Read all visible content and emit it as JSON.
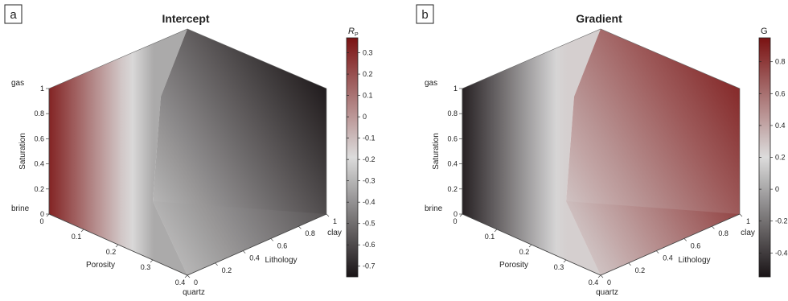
{
  "chart_data": [
    {
      "type": "heatmap",
      "panel_label": "a",
      "title": "Intercept",
      "colorbar_label": "R",
      "colorbar_label_sub": "P",
      "colorbar_range": [
        -0.75,
        0.37
      ],
      "colorbar_ticks": [
        0.3,
        0.2,
        0.1,
        0,
        -0.1,
        -0.2,
        -0.3,
        -0.4,
        -0.5,
        -0.6,
        -0.7
      ],
      "colormap": [
        "#1a1416",
        "#dcdcdc",
        "#7a1212"
      ],
      "axes": {
        "saturation": {
          "label": "Saturation",
          "ticks": [
            0,
            0.2,
            0.4,
            0.6,
            0.8,
            1
          ],
          "end_labels": [
            "brine",
            "gas"
          ]
        },
        "porosity": {
          "label": "Porosity",
          "ticks": [
            0,
            0.1,
            0.2,
            0.3,
            0.4
          ]
        },
        "lithology": {
          "label": "Lithology",
          "ticks": [
            0,
            0.2,
            0.4,
            0.6,
            0.8,
            1
          ],
          "end_labels": [
            "quartz",
            "clay"
          ]
        }
      },
      "faces": {
        "saturation_porosity": "left face: high values (~0.3) at porosity 0, decreasing toward ~-0.3 at porosity 0.4",
        "porosity_lithology": "bottom face: ~-0.3 at quartz, decreasing toward ~-0.55 at clay",
        "saturation_lithology": "right face: ~-0.3 at quartz, decreasing to ~-0.72 at clay and gas"
      }
    },
    {
      "type": "heatmap",
      "panel_label": "b",
      "title": "Gradient",
      "colorbar_label": "G",
      "colorbar_label_sub": "",
      "colorbar_range": [
        -0.55,
        0.95
      ],
      "colorbar_ticks": [
        0.8,
        0.6,
        0.4,
        0.2,
        0,
        -0.2,
        -0.4
      ],
      "colormap": [
        "#1a1416",
        "#dcdcdc",
        "#7a1212"
      ],
      "axes": {
        "saturation": {
          "label": "Saturation",
          "ticks": [
            0,
            0.2,
            0.4,
            0.6,
            0.8,
            1
          ],
          "end_labels": [
            "brine",
            "gas"
          ]
        },
        "porosity": {
          "label": "Porosity",
          "ticks": [
            0,
            0.1,
            0.2,
            0.3,
            0.4
          ]
        },
        "lithology": {
          "label": "Lithology",
          "ticks": [
            0,
            0.2,
            0.4,
            0.6,
            0.8,
            1
          ],
          "end_labels": [
            "quartz",
            "clay"
          ]
        }
      },
      "faces": {
        "saturation_porosity": "left face: low values (~-0.5) at porosity 0, increasing toward ~0.2 at porosity 0.4",
        "porosity_lithology": "bottom face: ~0.3 at quartz, increasing toward ~0.8 at clay",
        "saturation_lithology": "right face: ~0.3 at quartz, increasing to ~0.85 at clay"
      }
    }
  ]
}
